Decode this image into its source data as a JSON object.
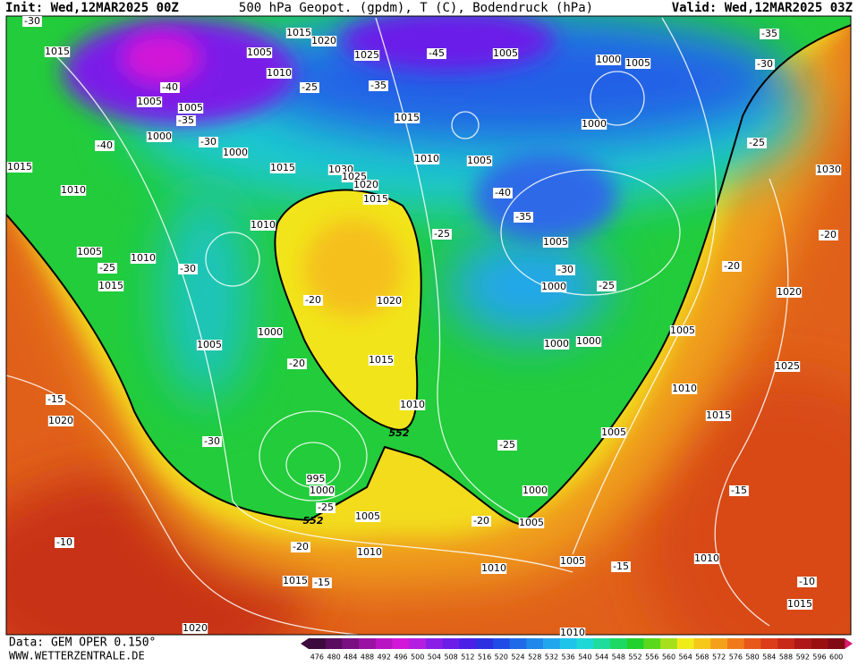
{
  "header": {
    "init": "Init: Wed,12MAR2025 00Z",
    "title": "500 hPa Geopot. (gpdm), T (C), Bodendruck (hPa)",
    "valid": "Valid: Wed,12MAR2025 03Z"
  },
  "footer": {
    "data": "Data: GEM OPER 0.150°",
    "site": "WWW.WETTERZENTRALE.DE"
  },
  "map": {
    "labels": [
      "-30",
      "1015",
      "1015",
      "1020",
      "1005",
      "1025",
      "-45",
      "1005",
      "1000",
      "1005",
      "-35",
      "-30",
      "1010",
      "-40",
      "-25",
      "-35",
      "1005",
      "1005",
      "-35",
      "1015",
      "1000",
      "1000",
      "-30",
      "-40",
      "1000",
      "1010",
      "1005",
      "-25",
      "1015",
      "1015",
      "1030",
      "1025",
      "1020",
      "1030",
      "1010",
      "-40",
      "1015",
      "-35",
      "1010",
      "-25",
      "1005",
      "-20",
      "1005",
      "1010",
      "-25",
      "-30",
      "-30",
      "-20",
      "1015",
      "1000",
      "-25",
      "-20",
      "1020",
      "1020",
      "1000",
      "1005",
      "1005",
      "1000",
      "1000",
      "-20",
      "1015",
      "1025",
      "1010",
      "-15",
      "1010",
      "1015",
      "1020",
      "552",
      "1005",
      "-30",
      "-25",
      "995",
      "1000",
      "1000",
      "-15",
      "-25",
      "552",
      "1005",
      "-20",
      "1005",
      "-10",
      "-20",
      "1010",
      "1010",
      "1005",
      "-15",
      "1010",
      "1015",
      "-15",
      "-10",
      "1015",
      "1020",
      "1010"
    ]
  },
  "colorbar": {
    "labels": [
      "476",
      "480",
      "484",
      "488",
      "492",
      "496",
      "500",
      "504",
      "508",
      "512",
      "516",
      "520",
      "524",
      "528",
      "532",
      "536",
      "540",
      "544",
      "548",
      "552",
      "556",
      "560",
      "564",
      "568",
      "572",
      "576",
      "580",
      "584",
      "588",
      "592",
      "596",
      "600"
    ],
    "colors": [
      "#3d0a3d",
      "#5a0c5e",
      "#7a0f82",
      "#9a12a3",
      "#b914c4",
      "#d217d8",
      "#b31ee0",
      "#8a1ee6",
      "#6a1ee8",
      "#4a20e6",
      "#2d30e0",
      "#1f4ce6",
      "#1e6ae8",
      "#1f88ea",
      "#20a6ec",
      "#1ec4ea",
      "#1ed8d8",
      "#1edc9c",
      "#1ed864",
      "#22d22c",
      "#5ad81c",
      "#a6e01c",
      "#f0ec1a",
      "#f5c81a",
      "#f5a01a",
      "#f07a1a",
      "#e8581a",
      "#dc3c1a",
      "#c82818",
      "#b01818",
      "#9a1010",
      "#820a14"
    ]
  }
}
